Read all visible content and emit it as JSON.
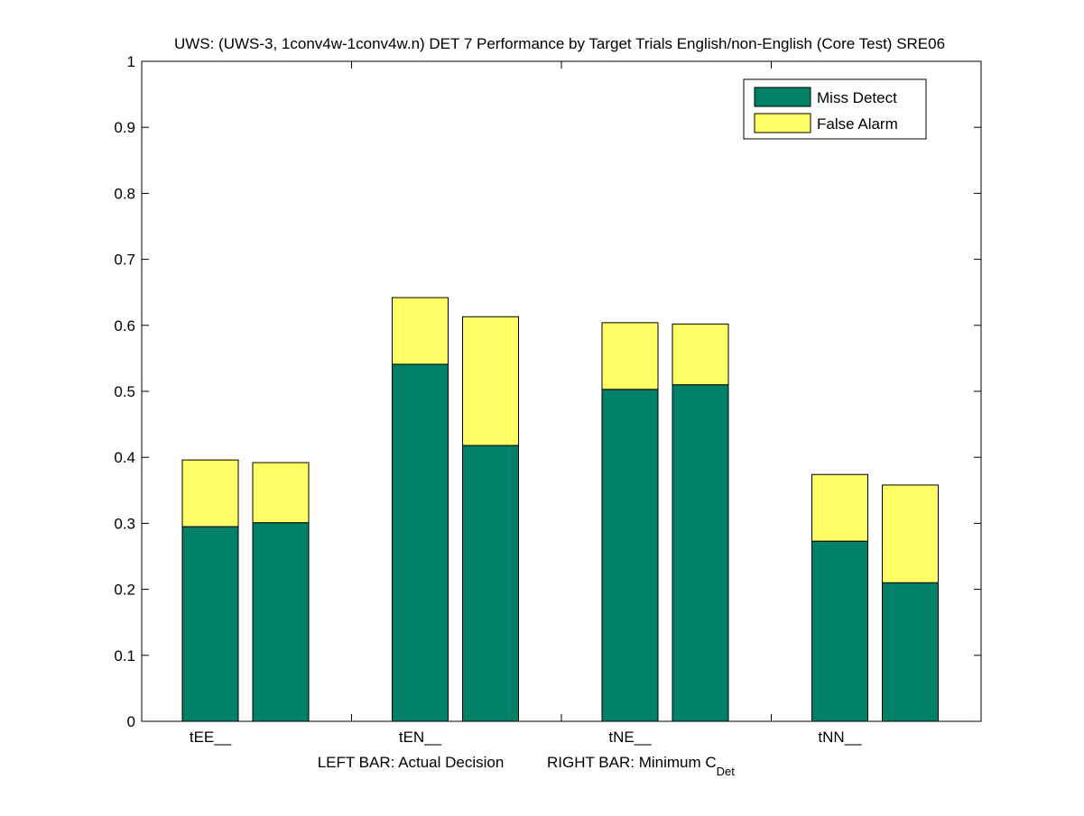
{
  "chart_data": {
    "type": "bar",
    "stacked": true,
    "title": "UWS: (UWS-3, 1conv4w-1conv4w.n) DET 7 Performance by Target Trials English/non-English (Core Test) SRE06",
    "xlabel_left": "LEFT BAR: Actual Decision",
    "xlabel_right_main": "RIGHT BAR: Minimum C",
    "xlabel_right_sub": "Det",
    "ylabel": "",
    "ylim": [
      0,
      1
    ],
    "yticks": [
      "0",
      "0.1",
      "0.2",
      "0.3",
      "0.4",
      "0.5",
      "0.6",
      "0.7",
      "0.8",
      "0.9",
      "1"
    ],
    "categories": [
      "tEE__",
      "tEN__",
      "tNE__",
      "tNN__"
    ],
    "bar_roles": [
      "Actual Decision",
      "Minimum CDet"
    ],
    "series": [
      {
        "name": "Miss Detect",
        "color": "#008066",
        "values": [
          [
            0.295,
            0.301
          ],
          [
            0.541,
            0.418
          ],
          [
            0.503,
            0.51
          ],
          [
            0.273,
            0.21
          ]
        ]
      },
      {
        "name": "False Alarm",
        "color": "#ffff66",
        "values": [
          [
            0.101,
            0.091
          ],
          [
            0.101,
            0.195
          ],
          [
            0.101,
            0.092
          ],
          [
            0.101,
            0.148
          ]
        ]
      }
    ],
    "legend": {
      "position": "top-right",
      "entries": [
        "Miss Detect",
        "False Alarm"
      ]
    },
    "grid": false
  }
}
